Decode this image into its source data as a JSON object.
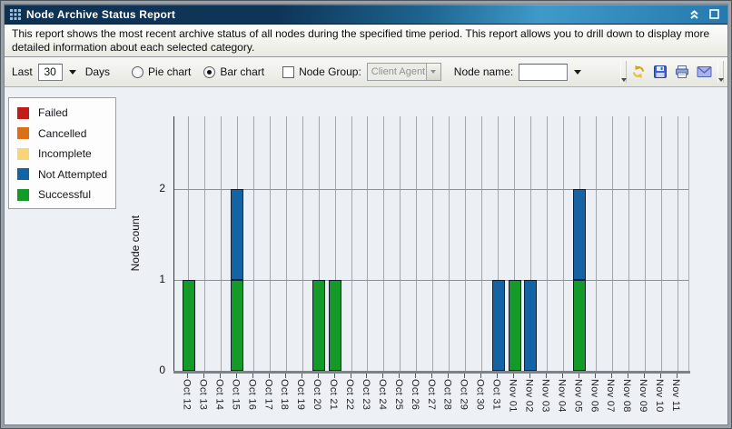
{
  "window": {
    "title": "Node Archive Status Report",
    "controls": {
      "collapse": "collapse-chevrons-up",
      "maximize": "maximize-box"
    }
  },
  "description": "This report shows the most recent archive status of all nodes during the specified time period. This report allows you to drill down to display more detailed information about each selected category.",
  "toolbar": {
    "last_label": "Last",
    "last_value": "30",
    "days_label": "Days",
    "pie_chart_label": "Pie chart",
    "pie_selected": false,
    "bar_chart_label": "Bar chart",
    "bar_selected": true,
    "node_group_checked": false,
    "node_group_label": "Node Group:",
    "node_group_value": "Client Agent",
    "node_name_label": "Node name:",
    "node_name_value": "",
    "icon_buttons": [
      "refresh",
      "save",
      "print",
      "email"
    ]
  },
  "legend": {
    "items": [
      {
        "label": "Failed",
        "color": "#c31b18"
      },
      {
        "label": "Cancelled",
        "color": "#dc7014"
      },
      {
        "label": "Incomplete",
        "color": "#f8d678"
      },
      {
        "label": "Not Attempted",
        "color": "#1463a5"
      },
      {
        "label": "Successful",
        "color": "#149a28"
      }
    ]
  },
  "chart_data": {
    "type": "bar",
    "stacked": true,
    "stack_order": "bottom_to_top",
    "title": "",
    "xlabel": "",
    "ylabel": "Node count",
    "ylim": [
      0,
      2.8
    ],
    "yticks": [
      0,
      1,
      2
    ],
    "grid": "vertical-and-horizontal-ticks",
    "legend_position": "top-left-box",
    "categories": [
      "Oct 12",
      "Oct 13",
      "Oct 14",
      "Oct 15",
      "Oct 16",
      "Oct 17",
      "Oct 18",
      "Oct 19",
      "Oct 20",
      "Oct 21",
      "Oct 22",
      "Oct 23",
      "Oct 24",
      "Oct 25",
      "Oct 26",
      "Oct 27",
      "Oct 28",
      "Oct 29",
      "Oct 30",
      "Oct 31",
      "Nov 01",
      "Nov 02",
      "Nov 03",
      "Nov 04",
      "Nov 05",
      "Nov 06",
      "Nov 07",
      "Nov 08",
      "Nov 09",
      "Nov 10",
      "Nov 11"
    ],
    "series": [
      {
        "name": "Successful",
        "color": "#149a28",
        "values": [
          1,
          0,
          0,
          1,
          0,
          0,
          0,
          0,
          1,
          1,
          0,
          0,
          0,
          0,
          0,
          0,
          0,
          0,
          0,
          0,
          1,
          0,
          0,
          0,
          1,
          0,
          0,
          0,
          0,
          0,
          0
        ]
      },
      {
        "name": "Not Attempted",
        "color": "#1463a5",
        "values": [
          0,
          0,
          0,
          1,
          0,
          0,
          0,
          0,
          0,
          0,
          0,
          0,
          0,
          0,
          0,
          0,
          0,
          0,
          0,
          1,
          0,
          1,
          0,
          0,
          1,
          0,
          0,
          0,
          0,
          0,
          0
        ]
      },
      {
        "name": "Incomplete",
        "color": "#f8d678",
        "values": [
          0,
          0,
          0,
          0,
          0,
          0,
          0,
          0,
          0,
          0,
          0,
          0,
          0,
          0,
          0,
          0,
          0,
          0,
          0,
          0,
          0,
          0,
          0,
          0,
          0,
          0,
          0,
          0,
          0,
          0,
          0
        ]
      },
      {
        "name": "Cancelled",
        "color": "#dc7014",
        "values": [
          0,
          0,
          0,
          0,
          0,
          0,
          0,
          0,
          0,
          0,
          0,
          0,
          0,
          0,
          0,
          0,
          0,
          0,
          0,
          0,
          0,
          0,
          0,
          0,
          0,
          0,
          0,
          0,
          0,
          0,
          0
        ]
      },
      {
        "name": "Failed",
        "color": "#c31b18",
        "values": [
          0,
          0,
          0,
          0,
          0,
          0,
          0,
          0,
          0,
          0,
          0,
          0,
          0,
          0,
          0,
          0,
          0,
          0,
          0,
          0,
          0,
          0,
          0,
          0,
          0,
          0,
          0,
          0,
          0,
          0,
          0
        ]
      }
    ]
  }
}
